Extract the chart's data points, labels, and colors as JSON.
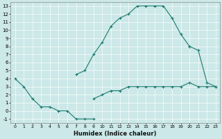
{
  "title": "",
  "xlabel": "Humidex (Indice chaleur)",
  "bg_color": "#cce8e8",
  "line_color": "#1a7a6e",
  "grid_color": "#b0d8d8",
  "xlim": [
    -0.5,
    23.5
  ],
  "ylim": [
    -1.5,
    13.5
  ],
  "curve1_x": [
    0,
    1,
    2,
    3,
    4,
    5,
    6,
    7,
    8,
    9
  ],
  "curve1_y": [
    4,
    3,
    1.5,
    0.5,
    0.5,
    0,
    0,
    -1,
    -1,
    -1
  ],
  "curve2_x": [
    7,
    8,
    9,
    10,
    11,
    12,
    13,
    14,
    15,
    16,
    17,
    18,
    19,
    20
  ],
  "curve2_y": [
    4.5,
    5.0,
    7.0,
    8.5,
    10.5,
    11.5,
    12.0,
    13.0,
    13.0,
    13.0,
    13.0,
    11.5,
    9.5,
    8.0
  ],
  "curve3_x": [
    9,
    10,
    11,
    12,
    13,
    14,
    15,
    16,
    17,
    18,
    19,
    20,
    21,
    22,
    23
  ],
  "curve3_y": [
    1.5,
    2.0,
    2.5,
    2.5,
    3.0,
    3.0,
    3.0,
    3.0,
    3.0,
    3.0,
    3.0,
    3.5,
    3.0,
    3.0,
    3.0
  ],
  "curve4_x": [
    20,
    21,
    22,
    23
  ],
  "curve4_y": [
    8.0,
    7.5,
    3.5,
    3.0
  ],
  "xtick_fontsize": 4.5,
  "ytick_fontsize": 5.0,
  "xlabel_fontsize": 6.0
}
